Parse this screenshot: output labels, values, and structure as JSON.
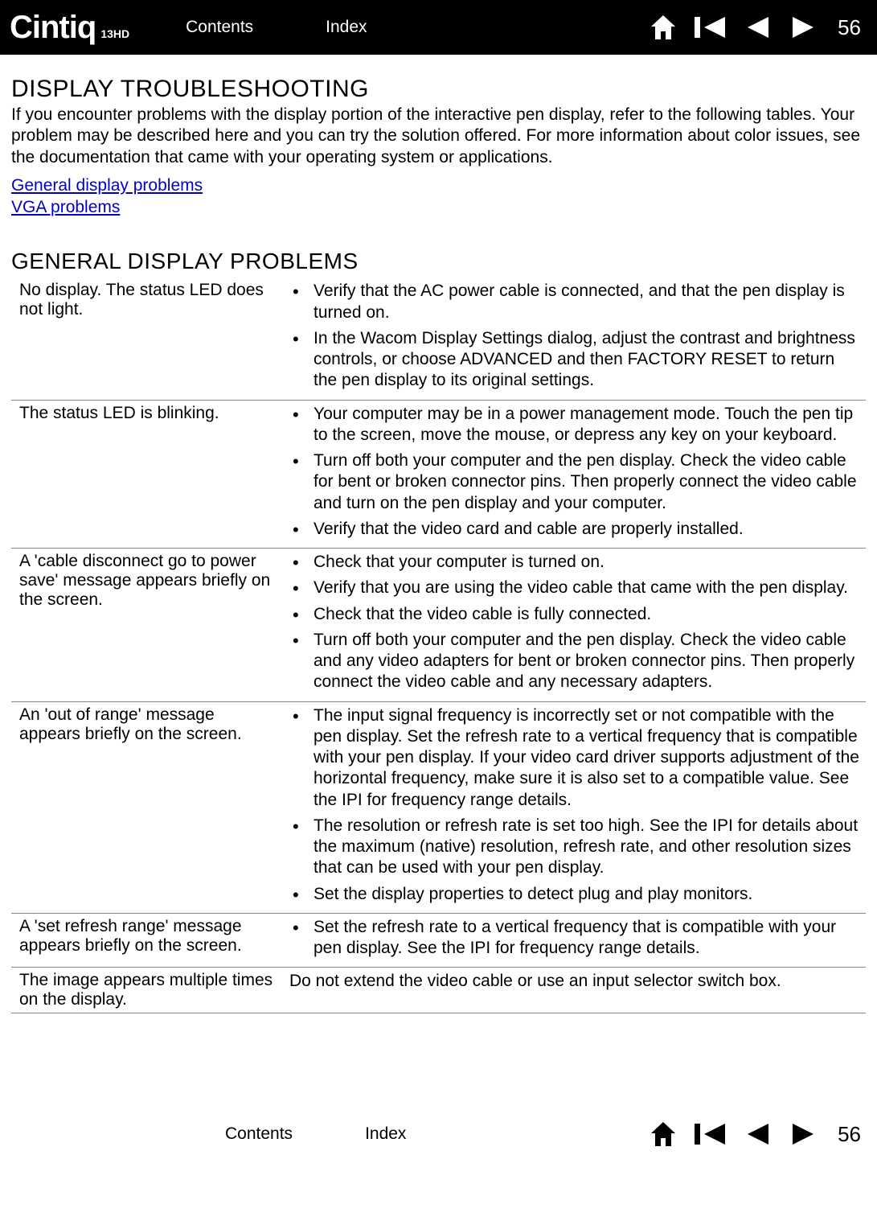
{
  "header": {
    "logo_main": "Cintiq",
    "logo_sub": "13HD",
    "contents_label": "Contents",
    "index_label": "Index",
    "page_number": "56"
  },
  "main": {
    "title": "DISPLAY TROUBLESHOOTING",
    "intro": "If you encounter problems with the display portion of the interactive pen display, refer to the following tables. Your problem may be described here and you can try the solution offered. For more information about color issues, see the documentation that came with your operating system or applications.",
    "link1": "General display problems",
    "link2": "VGA problems",
    "section_title": "GENERAL DISPLAY PROBLEMS"
  },
  "rows": [
    {
      "problem": "No display. The status LED does not light.",
      "solutions": [
        "Verify that the AC power cable is connected, and that the pen display is turned on.",
        "In the Wacom Display Settings dialog, adjust the contrast and brightness controls, or choose ADVANCED and then FACTORY RESET to return the pen display to its original settings."
      ]
    },
    {
      "problem": "The status LED is blinking.",
      "solutions": [
        "Your computer may be in a power management mode. Touch the pen tip to the screen, move the mouse, or depress any key on your keyboard.",
        "Turn off both your computer and the pen display. Check the video cable for bent or broken connector pins. Then properly connect the video cable and turn on the pen display and your computer.",
        "Verify that the video card and cable are properly installed."
      ]
    },
    {
      "problem": "A 'cable disconnect go to power save' message appears briefly on the screen.",
      "solutions": [
        "Check that your computer is turned on.",
        "Verify that you are using the video cable that came with the pen display.",
        "Check that the video cable is fully connected.",
        "Turn off both your computer and the pen display. Check the video cable and any video adapters for bent or broken connector pins. Then properly connect the video cable and any necessary adapters."
      ]
    },
    {
      "problem": "An 'out of range' message appears briefly on the screen.",
      "solutions": [
        "The input signal frequency is incorrectly set or not compatible with the pen display. Set the refresh rate to a vertical frequency that is compatible with your pen display. If your video card driver supports adjustment of the horizontal frequency, make sure it is also set to a compatible value. See the IPI for frequency range details.",
        "The resolution or refresh rate is set too high. See the IPI for details about the maximum (native) resolution, refresh rate, and other resolution sizes that can be used with your pen display.",
        "Set the display properties to detect plug and play monitors."
      ]
    },
    {
      "problem": "A 'set refresh range' message appears briefly on the screen.",
      "solutions": [
        "Set the refresh rate to a vertical frequency that is compatible with your pen display. See the IPI for frequency range details."
      ]
    },
    {
      "problem": "The image appears multiple times on the display.",
      "plain": "Do not extend the video cable or use an input selector switch box."
    }
  ],
  "footer": {
    "contents_label": "Contents",
    "index_label": "Index",
    "page_number": "56"
  },
  "colors": {
    "header_bg": "#000000",
    "link_color": "#0000cc",
    "text_color": "#000000",
    "border_color": "#888888"
  }
}
